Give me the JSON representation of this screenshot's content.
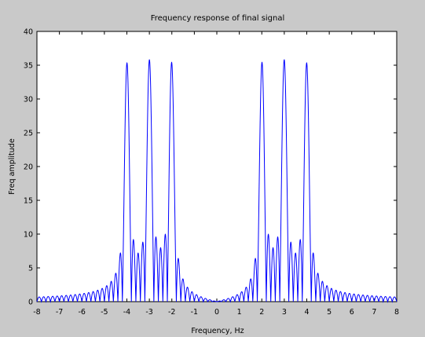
{
  "chart_data": {
    "type": "line",
    "title": "Frequency response of final signal",
    "xlabel": "Frequency, Hz",
    "ylabel": "Freq amplitude",
    "xlim": [
      -8,
      8
    ],
    "ylim": [
      0,
      40
    ],
    "x_ticks": [
      -8,
      -7,
      -6,
      -5,
      -4,
      -3,
      -2,
      -1,
      0,
      1,
      2,
      3,
      4,
      5,
      6,
      7,
      8
    ],
    "y_ticks": [
      0,
      5,
      10,
      15,
      20,
      25,
      30,
      35,
      40
    ],
    "grid": false,
    "legend": "none",
    "series": [
      {
        "color": "#0000ff",
        "model": "sinc_sum",
        "peaks": [
          {
            "center": -4,
            "height": 35.3
          },
          {
            "center": -3,
            "height": 35.8
          },
          {
            "center": -2,
            "height": 35.3
          },
          {
            "center": 2,
            "height": 35.3
          },
          {
            "center": 3,
            "height": 35.8
          },
          {
            "center": 4,
            "height": 35.3
          }
        ],
        "lobe_spacing": 0.2,
        "x_range": [
          -8,
          8
        ]
      }
    ]
  }
}
